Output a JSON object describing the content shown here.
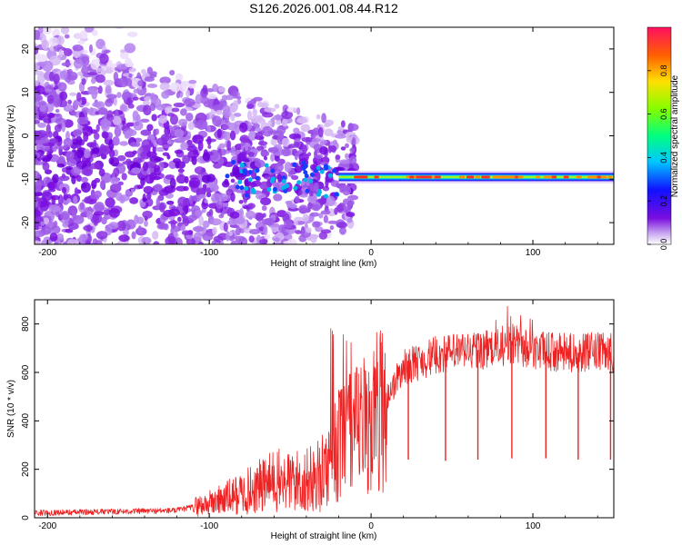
{
  "title": "S126.2026.001.08.44.R12",
  "colors": {
    "snr_line": "#ee2222",
    "spec_low": "#9f1fe6",
    "spec_main": "#7a0ee0"
  },
  "chart_data": [
    {
      "type": "heatmap",
      "name": "spectrogram",
      "xlabel": "Height of straight line (km)",
      "ylabel": "Frequency (Hz)",
      "xlim": [
        -208,
        150
      ],
      "ylim": [
        -25,
        25
      ],
      "xticks": [
        "-200",
        "-100",
        "0",
        "100"
      ],
      "yticks": [
        "20",
        "10",
        "0",
        "-10",
        "-20"
      ],
      "colorbar": {
        "label": "Normalized spectral amplitude",
        "range": [
          0,
          1
        ],
        "ticks": [
          "0.0",
          "0.2",
          "0.4",
          "0.6",
          "0.8"
        ]
      },
      "features": {
        "signal_track_freq_hz": -9.5,
        "signal_track_start_km": -20,
        "signal_track_end_km": 150,
        "noise_region_km": [
          -208,
          -20
        ]
      }
    },
    {
      "type": "line",
      "name": "snr",
      "xlabel": "Height of straight line (km)",
      "ylabel": "SNR (10 * v/v)",
      "xlim": [
        -208,
        150
      ],
      "ylim": [
        0,
        900
      ],
      "xticks": [
        "-200",
        "-100",
        "0",
        "100"
      ],
      "yticks": [
        "800",
        "600",
        "400",
        "200",
        "0"
      ],
      "profile_x": [
        -208,
        -120,
        -100,
        -80,
        -60,
        -40,
        -30,
        -20,
        -10,
        0,
        10,
        20,
        40,
        60,
        80,
        90,
        100,
        120,
        150
      ],
      "profile_y": [
        20,
        30,
        60,
        100,
        150,
        150,
        180,
        300,
        350,
        400,
        500,
        620,
        670,
        690,
        700,
        710,
        690,
        680,
        685
      ],
      "dips_x": [
        23,
        46,
        66,
        87,
        108,
        128,
        148
      ],
      "dips_y": [
        240,
        235,
        240,
        245,
        245,
        240,
        240
      ]
    }
  ]
}
